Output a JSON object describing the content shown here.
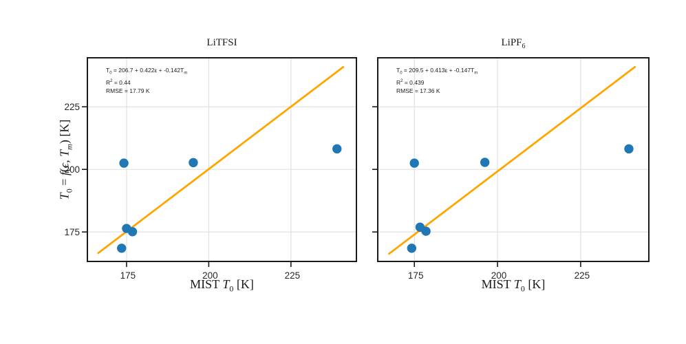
{
  "colors": {
    "point": "#1f77b4",
    "fit_line": "#ffa500",
    "grid": "#e0e0e0",
    "frame": "#1a1a1a",
    "tick_text": "#262626"
  },
  "chart_data": [
    {
      "type": "scatter",
      "title_text": "LiTFSI",
      "title_rich": [
        [
          "LiTFSI",
          ""
        ]
      ],
      "xlabel_text": "MIST T0 [K]",
      "xlabel_rich": [
        [
          "MIST ",
          ""
        ],
        [
          "T",
          "i"
        ],
        [
          "0",
          "sub"
        ],
        [
          " [K]",
          ""
        ]
      ],
      "ylabel_text": "T0 = f(eps, Tm) [K]",
      "ylabel_rich": [
        [
          "T",
          "i"
        ],
        [
          "0",
          "sub"
        ],
        [
          " = ",
          ""
        ],
        [
          "f",
          "i"
        ],
        [
          "(",
          ""
        ],
        [
          "ϵ",
          "i"
        ],
        [
          ", ",
          ""
        ],
        [
          "T",
          "i"
        ],
        [
          "m",
          "isub"
        ],
        [
          ") [K]",
          ""
        ]
      ],
      "annotation_lines": [
        "T0 = 206.7 + 0.422e + -0.142Tm",
        "R2 = 0.44",
        "RMSE = 17.79 K"
      ],
      "annotation_rich": [
        [
          [
            "T",
            ""
          ],
          [
            "0",
            "sub"
          ],
          [
            " = 206.7 + 0.422ε + -0.142T",
            ""
          ],
          [
            "m",
            "sub"
          ]
        ],
        [
          [
            "R",
            ""
          ],
          [
            "2",
            "sup"
          ],
          [
            " = 0.44",
            ""
          ]
        ],
        [
          [
            "RMSE = 17.79 K",
            ""
          ]
        ]
      ],
      "xlim": [
        163.3,
        244.7
      ],
      "ylim": [
        163.5,
        244.3
      ],
      "x_ticks": [
        175,
        200,
        225
      ],
      "y_ticks": [
        175,
        200,
        225
      ],
      "x_tick_labels": [
        "175",
        "200",
        "225"
      ],
      "y_tick_labels": [
        "175",
        "200",
        "225"
      ],
      "y_tick_labels_visible": true,
      "grid": true,
      "points": [
        [
          174.2,
          202.5
        ],
        [
          195.3,
          202.7
        ],
        [
          239.0,
          208.2
        ],
        [
          175.0,
          176.4
        ],
        [
          176.8,
          175.1
        ],
        [
          173.5,
          168.5
        ]
      ],
      "fit_line": {
        "x": [
          166.4,
          240.9
        ],
        "y": [
          166.6,
          240.9
        ]
      }
    },
    {
      "type": "scatter",
      "title_text": "LiPF6",
      "title_rich": [
        [
          "LiPF",
          ""
        ],
        [
          "6",
          "sub"
        ]
      ],
      "xlabel_text": "MIST T0 [K]",
      "xlabel_rich": [
        [
          "MIST ",
          ""
        ],
        [
          "T",
          "i"
        ],
        [
          "0",
          "sub"
        ],
        [
          " [K]",
          ""
        ]
      ],
      "annotation_lines": [
        "T0 = 209.5 + 0.413e + -0.147Tm",
        "R2 = 0.439",
        "RMSE = 17.36 K"
      ],
      "annotation_rich": [
        [
          [
            "T",
            ""
          ],
          [
            "0",
            "sub"
          ],
          [
            " = 209.5 + 0.413ε + -0.147T",
            ""
          ],
          [
            "m",
            "sub"
          ]
        ],
        [
          [
            "R",
            ""
          ],
          [
            "2",
            "sup"
          ],
          [
            " = 0.439",
            ""
          ]
        ],
        [
          [
            "RMSE = 17.36 K",
            ""
          ]
        ]
      ],
      "xlim": [
        164.2,
        245.3
      ],
      "ylim": [
        163.5,
        244.3
      ],
      "x_ticks": [
        175,
        200,
        225
      ],
      "y_ticks": [
        175,
        200,
        225
      ],
      "x_tick_labels": [
        "175",
        "200",
        "225"
      ],
      "y_tick_labels": [
        "175",
        "200",
        "225"
      ],
      "y_tick_labels_visible": false,
      "grid": true,
      "points": [
        [
          175.0,
          202.5
        ],
        [
          196.2,
          202.8
        ],
        [
          239.5,
          208.2
        ],
        [
          176.7,
          176.9
        ],
        [
          178.5,
          175.3
        ],
        [
          174.2,
          168.5
        ]
      ],
      "fit_line": {
        "x": [
          167.4,
          241.3
        ],
        "y": [
          166.3,
          240.9
        ]
      }
    }
  ]
}
